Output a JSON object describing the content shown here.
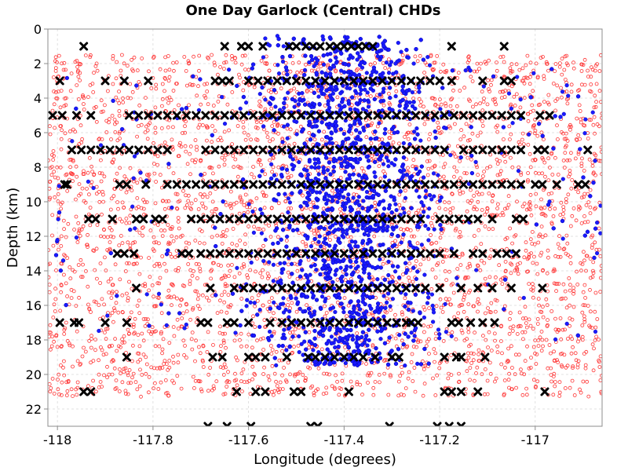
{
  "chart_data": {
    "type": "scatter",
    "title": "One Day Garlock (Central) CHDs",
    "xlabel": "Longitude (degrees)",
    "ylabel": "Depth (km)",
    "xlim": [
      -118.02,
      -116.86
    ],
    "ylim": [
      0,
      23
    ],
    "y_inverted": true,
    "x_ticks": [
      "-118",
      "-117.8",
      "-117.6",
      "-117.4",
      "-117.2",
      "-117"
    ],
    "y_ticks": [
      "0",
      "2",
      "4",
      "6",
      "8",
      "10",
      "12",
      "14",
      "16",
      "18",
      "20",
      "22"
    ],
    "x_tick_values": [
      -118,
      -117.8,
      -117.6,
      -117.4,
      -117.2,
      -117
    ],
    "y_tick_values": [
      0,
      2,
      4,
      6,
      8,
      10,
      12,
      14,
      16,
      18,
      20,
      22
    ],
    "grid": true,
    "series": [
      {
        "marker": "open-circle",
        "color": "#ff3333",
        "x_range": [
          -118.02,
          -116.86
        ],
        "y_range": [
          1.5,
          21.3
        ],
        "count": 3600
      },
      {
        "marker": "filled-circle",
        "color": "#1a1aff",
        "x_center": -117.39,
        "x_spread": 0.09,
        "y_range": [
          0.4,
          19.5
        ],
        "count": 2600
      },
      {
        "marker": "x",
        "color": "#000000",
        "rows": [
          {
            "depth": 1,
            "x": [
              -117.945,
              -117.65,
              -117.615,
              -117.6,
              -117.57,
              -117.515,
              -117.5,
              -117.48,
              -117.465,
              -117.45,
              -117.43,
              -117.415,
              -117.4,
              -117.385,
              -117.37,
              -117.355,
              -117.34,
              -117.175,
              -117.065
            ]
          },
          {
            "depth": 3,
            "x": [
              -117.995,
              -117.9,
              -117.86,
              -117.81,
              -117.67,
              -117.655,
              -117.64,
              -117.6,
              -117.58,
              -117.56,
              -117.54,
              -117.52,
              -117.5,
              -117.48,
              -117.46,
              -117.44,
              -117.42,
              -117.4,
              -117.38,
              -117.36,
              -117.34,
              -117.32,
              -117.3,
              -117.28,
              -117.26,
              -117.24,
              -117.22,
              -117.2,
              -117.175,
              -117.11,
              -117.065,
              -117.05
            ]
          },
          {
            "depth": 5,
            "x": [
              -118.01,
              -117.99,
              -117.96,
              -117.93,
              -117.85,
              -117.83,
              -117.81,
              -117.79,
              -117.77,
              -117.75,
              -117.73,
              -117.71,
              -117.69,
              -117.67,
              -117.65,
              -117.63,
              -117.61,
              -117.59,
              -117.57,
              -117.55,
              -117.53,
              -117.51,
              -117.49,
              -117.47,
              -117.45,
              -117.43,
              -117.41,
              -117.39,
              -117.37,
              -117.35,
              -117.33,
              -117.31,
              -117.29,
              -117.27,
              -117.25,
              -117.23,
              -117.21,
              -117.19,
              -117.17,
              -117.15,
              -117.13,
              -117.11,
              -117.09,
              -117.07,
              -117.05,
              -117.03,
              -116.99,
              -116.97
            ]
          },
          {
            "depth": 7,
            "x": [
              -117.97,
              -117.95,
              -117.93,
              -117.91,
              -117.89,
              -117.87,
              -117.85,
              -117.83,
              -117.81,
              -117.79,
              -117.77,
              -117.69,
              -117.67,
              -117.65,
              -117.63,
              -117.61,
              -117.59,
              -117.57,
              -117.55,
              -117.53,
              -117.51,
              -117.49,
              -117.47,
              -117.45,
              -117.43,
              -117.41,
              -117.39,
              -117.37,
              -117.35,
              -117.33,
              -117.31,
              -117.29,
              -117.27,
              -117.25,
              -117.23,
              -117.21,
              -117.19,
              -117.15,
              -117.13,
              -117.11,
              -117.09,
              -117.07,
              -117.05,
              -117.03,
              -116.995,
              -116.98,
              -116.89
            ]
          },
          {
            "depth": 9,
            "x": [
              -117.985,
              -117.98,
              -117.87,
              -117.855,
              -117.815,
              -117.77,
              -117.75,
              -117.73,
              -117.71,
              -117.69,
              -117.67,
              -117.65,
              -117.63,
              -117.61,
              -117.59,
              -117.57,
              -117.55,
              -117.53,
              -117.51,
              -117.49,
              -117.47,
              -117.45,
              -117.43,
              -117.41,
              -117.39,
              -117.37,
              -117.35,
              -117.33,
              -117.31,
              -117.29,
              -117.27,
              -117.25,
              -117.23,
              -117.21,
              -117.19,
              -117.17,
              -117.15,
              -117.13,
              -117.11,
              -117.09,
              -117.07,
              -117.05,
              -117.03,
              -117.0,
              -116.985,
              -116.955,
              -116.91,
              -116.895
            ]
          },
          {
            "depth": 11,
            "x": [
              -117.935,
              -117.92,
              -117.885,
              -117.835,
              -117.82,
              -117.795,
              -117.78,
              -117.72,
              -117.7,
              -117.68,
              -117.66,
              -117.64,
              -117.62,
              -117.6,
              -117.58,
              -117.56,
              -117.54,
              -117.52,
              -117.5,
              -117.48,
              -117.46,
              -117.44,
              -117.42,
              -117.4,
              -117.38,
              -117.36,
              -117.34,
              -117.32,
              -117.3,
              -117.28,
              -117.26,
              -117.24,
              -117.2,
              -117.18,
              -117.16,
              -117.14,
              -117.12,
              -117.09,
              -117.04,
              -117.025
            ]
          },
          {
            "depth": 13,
            "x": [
              -117.875,
              -117.86,
              -117.84,
              -117.74,
              -117.725,
              -117.7,
              -117.68,
              -117.66,
              -117.64,
              -117.62,
              -117.6,
              -117.58,
              -117.56,
              -117.54,
              -117.52,
              -117.5,
              -117.48,
              -117.46,
              -117.44,
              -117.42,
              -117.4,
              -117.38,
              -117.36,
              -117.34,
              -117.32,
              -117.3,
              -117.28,
              -117.26,
              -117.24,
              -117.22,
              -117.2,
              -117.17,
              -117.13,
              -117.11,
              -117.08,
              -117.06,
              -117.04
            ]
          },
          {
            "depth": 15,
            "x": [
              -117.835,
              -117.68,
              -117.63,
              -117.61,
              -117.59,
              -117.57,
              -117.55,
              -117.53,
              -117.51,
              -117.49,
              -117.47,
              -117.45,
              -117.43,
              -117.41,
              -117.39,
              -117.37,
              -117.35,
              -117.33,
              -117.31,
              -117.29,
              -117.27,
              -117.25,
              -117.23,
              -117.2,
              -117.155,
              -117.12,
              -117.09,
              -117.05,
              -116.985
            ]
          },
          {
            "depth": 17,
            "x": [
              -117.995,
              -117.965,
              -117.955,
              -117.9,
              -117.855,
              -117.7,
              -117.685,
              -117.645,
              -117.63,
              -117.6,
              -117.555,
              -117.53,
              -117.51,
              -117.49,
              -117.47,
              -117.45,
              -117.43,
              -117.41,
              -117.39,
              -117.37,
              -117.35,
              -117.33,
              -117.31,
              -117.29,
              -117.27,
              -117.26,
              -117.245,
              -117.175,
              -117.16,
              -117.135,
              -117.11,
              -117.085
            ]
          },
          {
            "depth": 19,
            "x": [
              -117.855,
              -117.675,
              -117.655,
              -117.6,
              -117.585,
              -117.565,
              -117.52,
              -117.475,
              -117.46,
              -117.44,
              -117.42,
              -117.4,
              -117.38,
              -117.36,
              -117.335,
              -117.3,
              -117.285,
              -117.19,
              -117.165,
              -117.155,
              -117.105
            ]
          },
          {
            "depth": 21,
            "x": [
              -117.945,
              -117.93,
              -117.625,
              -117.585,
              -117.565,
              -117.505,
              -117.49,
              -117.39,
              -117.19,
              -117.175,
              -117.155,
              -117.12,
              -116.98
            ]
          },
          {
            "depth": 23,
            "x": [
              -117.685,
              -117.645,
              -117.595,
              -117.47,
              -117.455,
              -117.305,
              -117.205,
              -117.18,
              -117.155
            ]
          }
        ]
      }
    ]
  }
}
